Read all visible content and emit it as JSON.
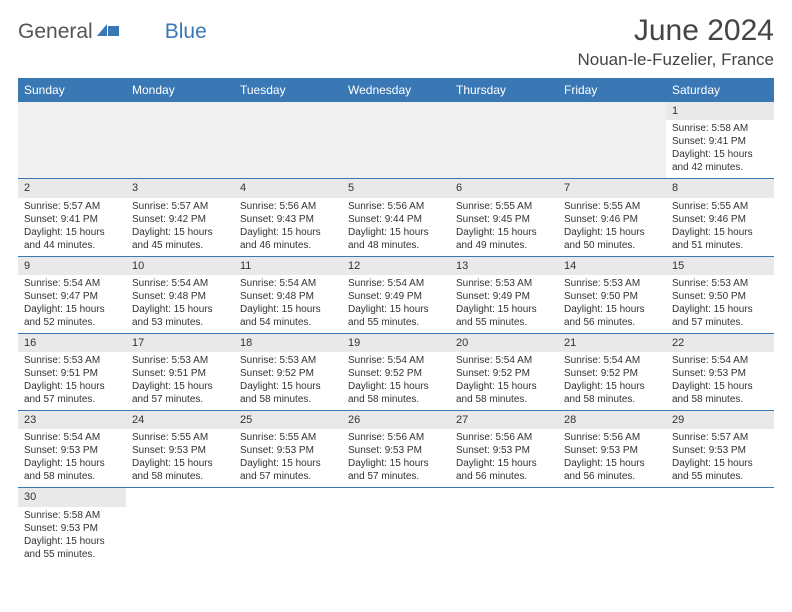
{
  "logo": {
    "part1": "General",
    "part2": "Blue"
  },
  "title": "June 2024",
  "location": "Nouan-le-Fuzelier, France",
  "colors": {
    "header_bg": "#3a78b5",
    "header_text": "#ffffff",
    "daynum_bg": "#e9e9e9",
    "cell_border": "#3a78b5",
    "body_text": "#333333",
    "title_text": "#444444",
    "logo_accent": "#3a78b5",
    "logo_gray": "#555555"
  },
  "weekdays": [
    "Sunday",
    "Monday",
    "Tuesday",
    "Wednesday",
    "Thursday",
    "Friday",
    "Saturday"
  ],
  "weeks": [
    [
      null,
      null,
      null,
      null,
      null,
      null,
      {
        "n": "1",
        "sr": "Sunrise: 5:58 AM",
        "ss": "Sunset: 9:41 PM",
        "dl": "Daylight: 15 hours and 42 minutes."
      }
    ],
    [
      {
        "n": "2",
        "sr": "Sunrise: 5:57 AM",
        "ss": "Sunset: 9:41 PM",
        "dl": "Daylight: 15 hours and 44 minutes."
      },
      {
        "n": "3",
        "sr": "Sunrise: 5:57 AM",
        "ss": "Sunset: 9:42 PM",
        "dl": "Daylight: 15 hours and 45 minutes."
      },
      {
        "n": "4",
        "sr": "Sunrise: 5:56 AM",
        "ss": "Sunset: 9:43 PM",
        "dl": "Daylight: 15 hours and 46 minutes."
      },
      {
        "n": "5",
        "sr": "Sunrise: 5:56 AM",
        "ss": "Sunset: 9:44 PM",
        "dl": "Daylight: 15 hours and 48 minutes."
      },
      {
        "n": "6",
        "sr": "Sunrise: 5:55 AM",
        "ss": "Sunset: 9:45 PM",
        "dl": "Daylight: 15 hours and 49 minutes."
      },
      {
        "n": "7",
        "sr": "Sunrise: 5:55 AM",
        "ss": "Sunset: 9:46 PM",
        "dl": "Daylight: 15 hours and 50 minutes."
      },
      {
        "n": "8",
        "sr": "Sunrise: 5:55 AM",
        "ss": "Sunset: 9:46 PM",
        "dl": "Daylight: 15 hours and 51 minutes."
      }
    ],
    [
      {
        "n": "9",
        "sr": "Sunrise: 5:54 AM",
        "ss": "Sunset: 9:47 PM",
        "dl": "Daylight: 15 hours and 52 minutes."
      },
      {
        "n": "10",
        "sr": "Sunrise: 5:54 AM",
        "ss": "Sunset: 9:48 PM",
        "dl": "Daylight: 15 hours and 53 minutes."
      },
      {
        "n": "11",
        "sr": "Sunrise: 5:54 AM",
        "ss": "Sunset: 9:48 PM",
        "dl": "Daylight: 15 hours and 54 minutes."
      },
      {
        "n": "12",
        "sr": "Sunrise: 5:54 AM",
        "ss": "Sunset: 9:49 PM",
        "dl": "Daylight: 15 hours and 55 minutes."
      },
      {
        "n": "13",
        "sr": "Sunrise: 5:53 AM",
        "ss": "Sunset: 9:49 PM",
        "dl": "Daylight: 15 hours and 55 minutes."
      },
      {
        "n": "14",
        "sr": "Sunrise: 5:53 AM",
        "ss": "Sunset: 9:50 PM",
        "dl": "Daylight: 15 hours and 56 minutes."
      },
      {
        "n": "15",
        "sr": "Sunrise: 5:53 AM",
        "ss": "Sunset: 9:50 PM",
        "dl": "Daylight: 15 hours and 57 minutes."
      }
    ],
    [
      {
        "n": "16",
        "sr": "Sunrise: 5:53 AM",
        "ss": "Sunset: 9:51 PM",
        "dl": "Daylight: 15 hours and 57 minutes."
      },
      {
        "n": "17",
        "sr": "Sunrise: 5:53 AM",
        "ss": "Sunset: 9:51 PM",
        "dl": "Daylight: 15 hours and 57 minutes."
      },
      {
        "n": "18",
        "sr": "Sunrise: 5:53 AM",
        "ss": "Sunset: 9:52 PM",
        "dl": "Daylight: 15 hours and 58 minutes."
      },
      {
        "n": "19",
        "sr": "Sunrise: 5:54 AM",
        "ss": "Sunset: 9:52 PM",
        "dl": "Daylight: 15 hours and 58 minutes."
      },
      {
        "n": "20",
        "sr": "Sunrise: 5:54 AM",
        "ss": "Sunset: 9:52 PM",
        "dl": "Daylight: 15 hours and 58 minutes."
      },
      {
        "n": "21",
        "sr": "Sunrise: 5:54 AM",
        "ss": "Sunset: 9:52 PM",
        "dl": "Daylight: 15 hours and 58 minutes."
      },
      {
        "n": "22",
        "sr": "Sunrise: 5:54 AM",
        "ss": "Sunset: 9:53 PM",
        "dl": "Daylight: 15 hours and 58 minutes."
      }
    ],
    [
      {
        "n": "23",
        "sr": "Sunrise: 5:54 AM",
        "ss": "Sunset: 9:53 PM",
        "dl": "Daylight: 15 hours and 58 minutes."
      },
      {
        "n": "24",
        "sr": "Sunrise: 5:55 AM",
        "ss": "Sunset: 9:53 PM",
        "dl": "Daylight: 15 hours and 58 minutes."
      },
      {
        "n": "25",
        "sr": "Sunrise: 5:55 AM",
        "ss": "Sunset: 9:53 PM",
        "dl": "Daylight: 15 hours and 57 minutes."
      },
      {
        "n": "26",
        "sr": "Sunrise: 5:56 AM",
        "ss": "Sunset: 9:53 PM",
        "dl": "Daylight: 15 hours and 57 minutes."
      },
      {
        "n": "27",
        "sr": "Sunrise: 5:56 AM",
        "ss": "Sunset: 9:53 PM",
        "dl": "Daylight: 15 hours and 56 minutes."
      },
      {
        "n": "28",
        "sr": "Sunrise: 5:56 AM",
        "ss": "Sunset: 9:53 PM",
        "dl": "Daylight: 15 hours and 56 minutes."
      },
      {
        "n": "29",
        "sr": "Sunrise: 5:57 AM",
        "ss": "Sunset: 9:53 PM",
        "dl": "Daylight: 15 hours and 55 minutes."
      }
    ],
    [
      {
        "n": "30",
        "sr": "Sunrise: 5:58 AM",
        "ss": "Sunset: 9:53 PM",
        "dl": "Daylight: 15 hours and 55 minutes."
      },
      null,
      null,
      null,
      null,
      null,
      null
    ]
  ]
}
